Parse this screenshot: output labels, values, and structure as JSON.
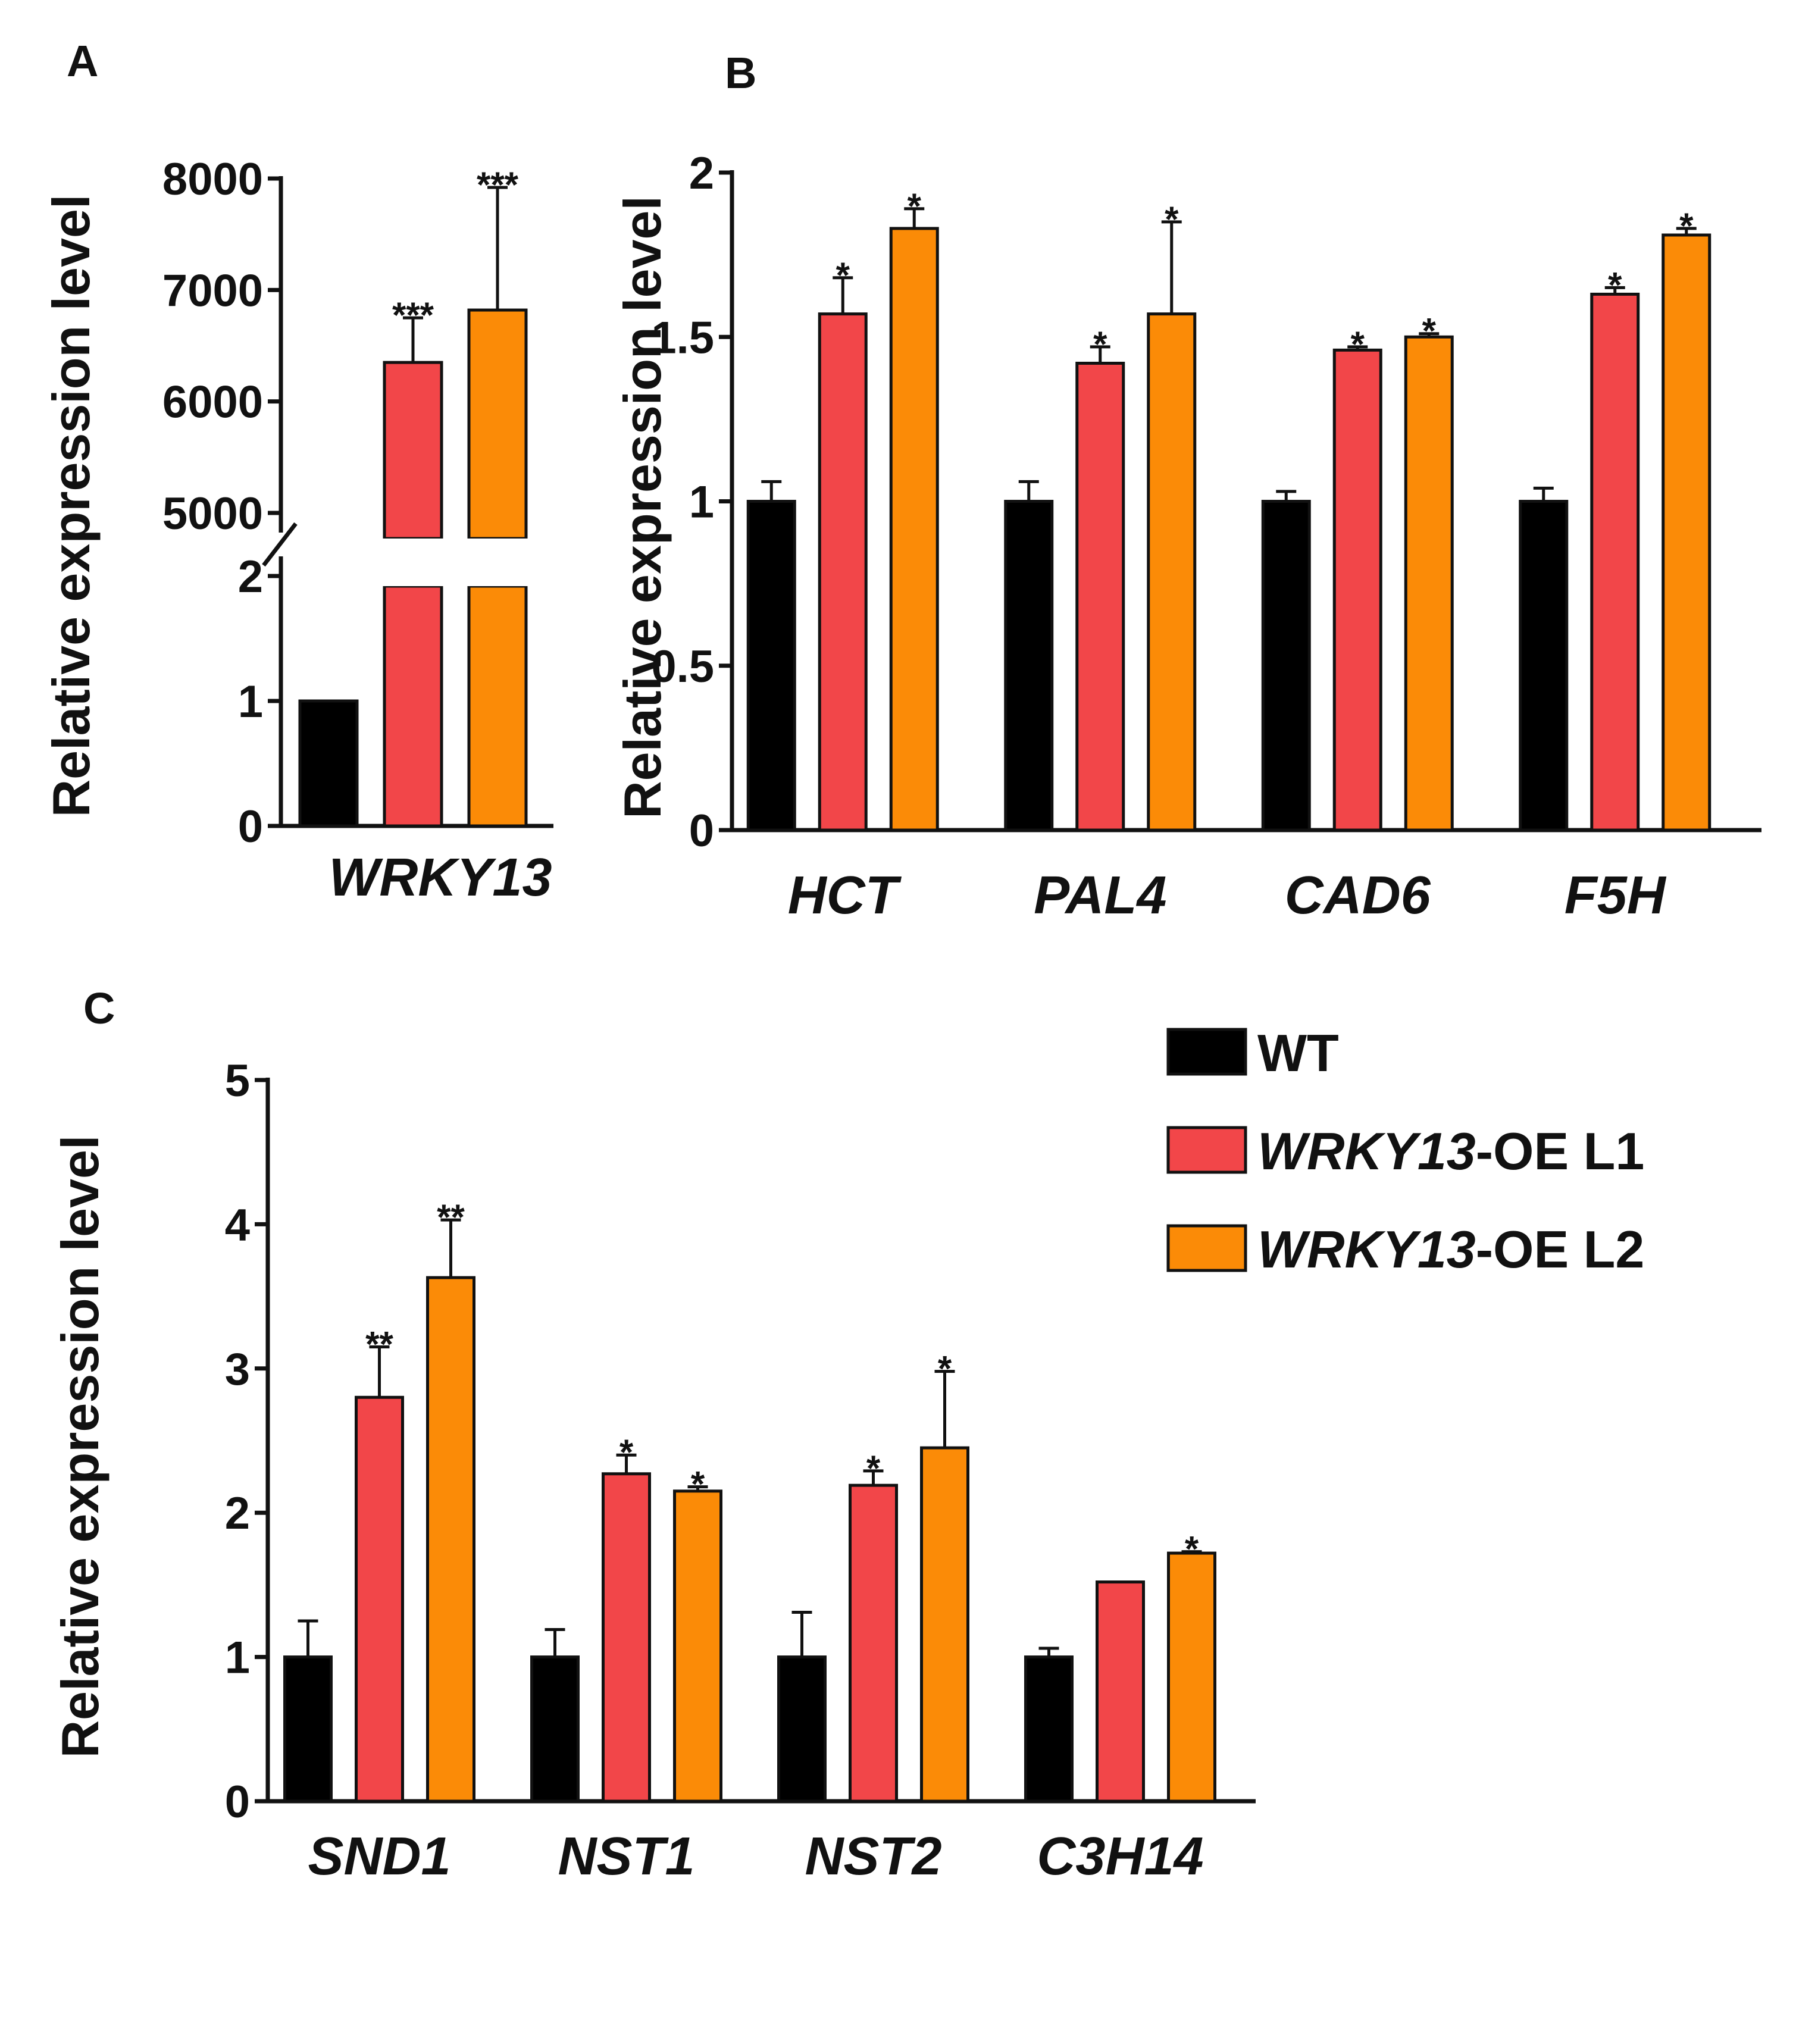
{
  "colors": {
    "WT": "#000000",
    "WRKY13-OE L1": "#f24649",
    "WRKY13-OE L2": "#fb8b07"
  },
  "legend": [
    {
      "key": "WT",
      "parts": [
        {
          "text": "WT",
          "italic": false
        }
      ]
    },
    {
      "key": "WRKY13-OE L1",
      "parts": [
        {
          "text": "WRKY13",
          "italic": true
        },
        {
          "text": "-OE L1",
          "italic": false
        }
      ]
    },
    {
      "key": "WRKY13-OE L2",
      "parts": [
        {
          "text": "WRKY13",
          "italic": true
        },
        {
          "text": "-OE L2",
          "italic": false
        }
      ]
    }
  ],
  "chart_data": [
    {
      "panel": "A",
      "type": "bar",
      "ylabel": "Relative expression level",
      "categories": [
        "WRKY13"
      ],
      "axis_break": {
        "lower": [
          0,
          2
        ],
        "upper": [
          5000,
          8000
        ]
      },
      "yticks_lower": [
        "0",
        "1",
        "2"
      ],
      "yticks_upper": [
        "5000",
        "6000",
        "7000",
        "8000"
      ],
      "series": [
        {
          "name": "WT",
          "values": [
            1.0
          ],
          "errors": [
            0.02
          ],
          "sig": [
            ""
          ]
        },
        {
          "name": "WRKY13-OE L1",
          "values": [
            6350
          ],
          "errors": [
            400
          ],
          "sig": [
            "***"
          ]
        },
        {
          "name": "WRKY13-OE L2",
          "values": [
            6820
          ],
          "errors": [
            1100
          ],
          "sig": [
            "***"
          ]
        }
      ]
    },
    {
      "panel": "B",
      "type": "bar",
      "ylabel": "Relative expression level",
      "categories": [
        "HCT",
        "PAL4",
        "CAD6",
        "F5H"
      ],
      "ylim": [
        0,
        2
      ],
      "yticks": [
        "0",
        "0.5",
        "1",
        "1.5",
        "2"
      ],
      "series": [
        {
          "name": "WT",
          "values": [
            1.0,
            1.0,
            1.0,
            1.0
          ],
          "errors": [
            0.06,
            0.06,
            0.03,
            0.04
          ],
          "sig": [
            "",
            "",
            "",
            ""
          ]
        },
        {
          "name": "WRKY13-OE L1",
          "values": [
            1.57,
            1.42,
            1.46,
            1.63
          ],
          "errors": [
            0.11,
            0.05,
            0.01,
            0.02
          ],
          "sig": [
            "*",
            "*",
            "*",
            "*"
          ]
        },
        {
          "name": "WRKY13-OE L2",
          "values": [
            1.83,
            1.57,
            1.5,
            1.81
          ],
          "errors": [
            0.06,
            0.28,
            0.01,
            0.02
          ],
          "sig": [
            "*",
            "*",
            "*",
            "*"
          ]
        }
      ]
    },
    {
      "panel": "C",
      "type": "bar",
      "ylabel": "Relative expression level",
      "categories": [
        "SND1",
        "NST1",
        "NST2",
        "C3H14"
      ],
      "ylim": [
        0,
        5
      ],
      "yticks": [
        "0",
        "1",
        "2",
        "3",
        "4",
        "5"
      ],
      "series": [
        {
          "name": "WT",
          "values": [
            1.0,
            1.0,
            1.0,
            1.0
          ],
          "errors": [
            0.25,
            0.19,
            0.31,
            0.06
          ],
          "sig": [
            "",
            "",
            "",
            ""
          ]
        },
        {
          "name": "WRKY13-OE L1",
          "values": [
            2.8,
            2.27,
            2.19,
            1.52
          ],
          "errors": [
            0.35,
            0.13,
            0.1,
            0.0
          ],
          "sig": [
            "**",
            "*",
            "*",
            ""
          ]
        },
        {
          "name": "WRKY13-OE L2",
          "values": [
            3.63,
            2.15,
            2.45,
            1.72
          ],
          "errors": [
            0.4,
            0.03,
            0.53,
            0.01
          ],
          "sig": [
            "**",
            "*",
            "*",
            "*"
          ]
        }
      ]
    }
  ]
}
